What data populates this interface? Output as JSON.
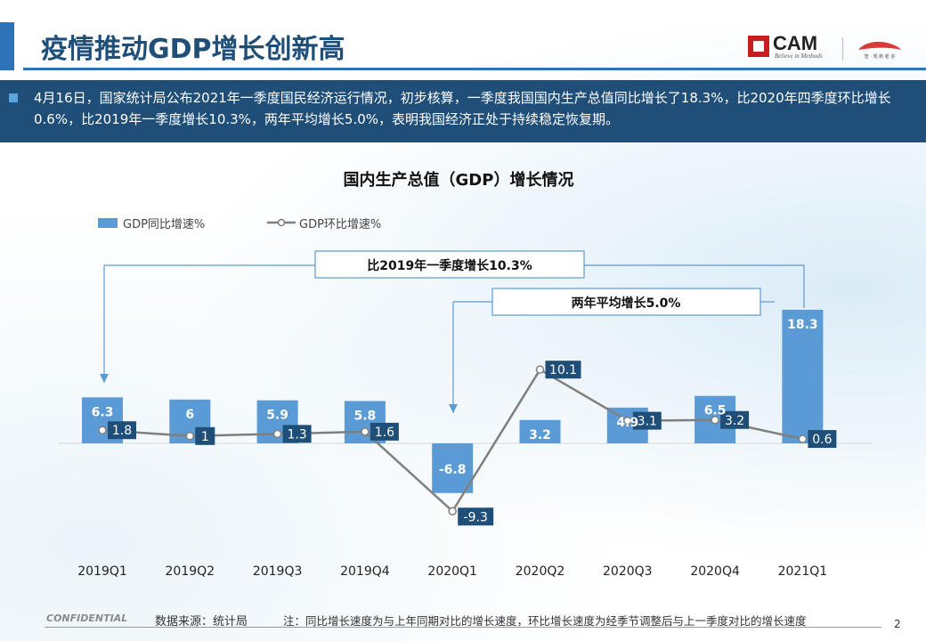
{
  "header": {
    "title": "疫情推动GDP增长创新高",
    "logo_text": "CAM",
    "logo_tagline": "Believe in Methods",
    "logo_sub": "智 · 观 新 者 进"
  },
  "summary": {
    "text": "4月16日，国家统计局公布2021年一季度国民经济运行情况，初步核算，一季度我国国内生产总值同比增长了18.3%，比2020年四季度环比增长0.6%，比2019年一季度增长10.3%，两年平均增长5.0%，表明我国经济正处于持续稳定恢复期。"
  },
  "chart_data": {
    "type": "bar",
    "title": "国内生产总值（GDP）增长情况",
    "categories": [
      "2019Q1",
      "2019Q2",
      "2019Q3",
      "2019Q4",
      "2020Q1",
      "2020Q2",
      "2020Q3",
      "2020Q4",
      "2021Q1"
    ],
    "series": [
      {
        "name": "GDP同比增速%",
        "kind": "bar",
        "values": [
          6.3,
          6,
          5.9,
          5.8,
          -6.8,
          3.2,
          4.9,
          6.5,
          18.3
        ],
        "labels": [
          "6.3",
          "6",
          "5.9",
          "5.8",
          "-6.8",
          "3.2",
          "4.9",
          "6.5",
          "18.3"
        ]
      },
      {
        "name": "GDP环比增速%",
        "kind": "line",
        "values": [
          1.8,
          1,
          1.3,
          1.6,
          -9.3,
          10.1,
          3.1,
          3.2,
          0.6
        ],
        "labels": [
          "1.8",
          "1",
          "1.3",
          "1.6",
          "-9.3",
          "10.1",
          "3.1",
          "3.2",
          "0.6"
        ]
      }
    ],
    "ylim": [
      -12,
      20
    ],
    "grid": false,
    "legend": "top-left",
    "annotations": [
      {
        "text": "比2019年一季度增长10.3%",
        "from": "2019Q1",
        "to": "2021Q1"
      },
      {
        "text": "两年平均增长5.0%",
        "from": "2020Q1",
        "to": "2021Q1"
      }
    ],
    "colors": {
      "bar": "#5b9bd5",
      "line": "#7f7f7f",
      "label_box": "#1f4e79",
      "arrow": "#5b9bd5"
    }
  },
  "footer": {
    "confidential": "CONFIDENTIAL",
    "source": "数据来源：统计局",
    "note": "注：同比增长速度为与上年同期对比的增长速度，环比增长速度为经季节调整后与上一季度对比的增长速度",
    "page": "2"
  }
}
